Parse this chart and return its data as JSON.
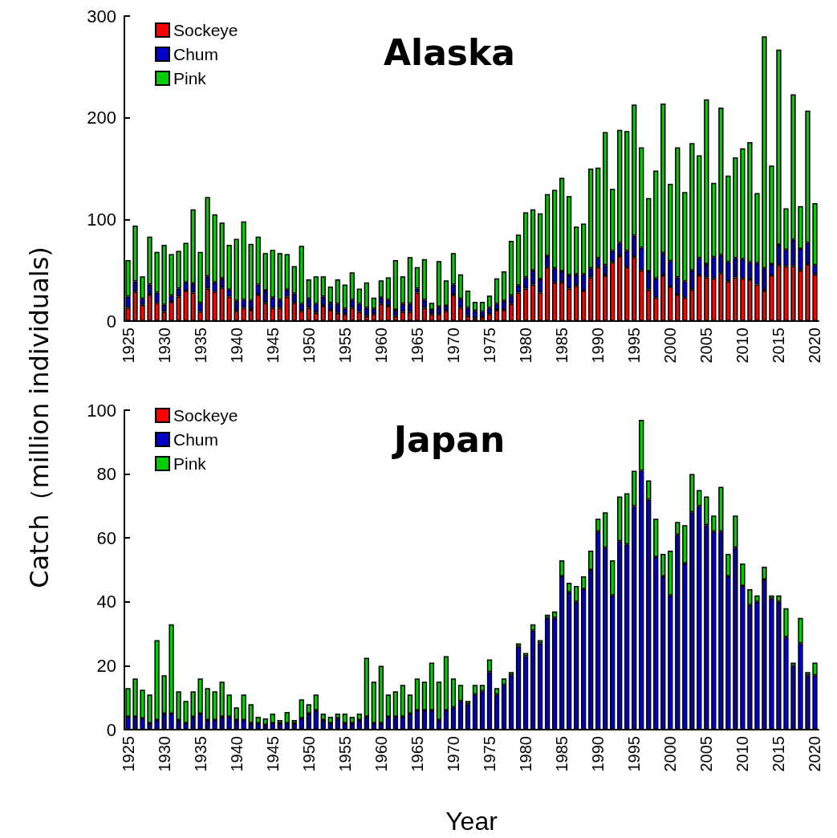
{
  "chart_data": [
    {
      "type": "bar",
      "title": "Alaska",
      "ylabel": "Catch（million individuals)",
      "stacked": true,
      "legend": "top left",
      "grid": false,
      "ylim": [
        0,
        300
      ],
      "yticks": [
        0,
        100,
        200,
        300
      ],
      "categories": [
        "1925",
        null,
        null,
        null,
        null,
        "1930",
        null,
        null,
        null,
        null,
        "1935",
        null,
        null,
        null,
        null,
        "1940",
        null,
        null,
        null,
        null,
        "1945",
        null,
        null,
        null,
        null,
        "1950",
        null,
        null,
        null,
        null,
        "1955",
        null,
        null,
        null,
        null,
        "1960",
        null,
        null,
        null,
        null,
        "1965",
        null,
        null,
        null,
        null,
        "1970",
        null,
        null,
        null,
        null,
        "1975",
        null,
        null,
        null,
        null,
        "1980",
        null,
        null,
        null,
        null,
        "1985",
        null,
        null,
        null,
        null,
        "1990",
        null,
        null,
        null,
        null,
        "1995",
        null,
        null,
        null,
        null,
        "2000",
        null,
        null,
        null,
        null,
        "2005",
        null,
        null,
        null,
        null,
        "2010",
        null,
        null,
        null,
        null,
        "2015",
        null,
        null,
        null,
        null,
        "2020"
      ],
      "series": [
        {
          "name": "Sockeye",
          "color": "#ff0000",
          "values": [
            13,
            29,
            16,
            26,
            18,
            9,
            19,
            24,
            30,
            28,
            9,
            32,
            29,
            33,
            24,
            10,
            13,
            11,
            26,
            18,
            13,
            13,
            24,
            18,
            10,
            13,
            8,
            15,
            11,
            8,
            7,
            13,
            9,
            5,
            7,
            17,
            15,
            5,
            9,
            9,
            28,
            13,
            7,
            7,
            10,
            26,
            13,
            5,
            3,
            4,
            7,
            11,
            11,
            17,
            28,
            32,
            36,
            28,
            53,
            38,
            38,
            32,
            35,
            30,
            43,
            53,
            45,
            58,
            64,
            53,
            63,
            50,
            31,
            23,
            45,
            34,
            26,
            23,
            31,
            45,
            43,
            42,
            47,
            39,
            43,
            42,
            41,
            36,
            30,
            45,
            55,
            54,
            54,
            50,
            56,
            46
          ]
        },
        {
          "name": "Chum",
          "color": "#0000cc",
          "values": [
            11,
            10,
            6,
            10,
            10,
            7,
            6,
            8,
            8,
            9,
            9,
            12,
            9,
            9,
            7,
            10,
            8,
            9,
            10,
            12,
            10,
            8,
            7,
            9,
            7,
            9,
            9,
            9,
            7,
            9,
            5,
            8,
            8,
            8,
            5,
            6,
            6,
            6,
            8,
            8,
            4,
            8,
            4,
            7,
            5,
            10,
            9,
            8,
            7,
            5,
            6,
            6,
            9,
            8,
            7,
            11,
            14,
            13,
            11,
            14,
            11,
            13,
            11,
            16,
            9,
            9,
            10,
            11,
            13,
            16,
            21,
            22,
            18,
            19,
            22,
            25,
            17,
            16,
            19,
            17,
            13,
            21,
            18,
            19,
            19,
            19,
            17,
            21,
            22,
            11,
            20,
            16,
            26,
            21,
            21,
            9
          ]
        },
        {
          "name": "Pink",
          "color": "#00cc00",
          "values": [
            36,
            55,
            22,
            47,
            40,
            59,
            41,
            37,
            39,
            73,
            50,
            78,
            67,
            55,
            44,
            61,
            77,
            56,
            47,
            37,
            47,
            46,
            35,
            27,
            57,
            19,
            27,
            20,
            16,
            24,
            24,
            27,
            15,
            25,
            11,
            17,
            22,
            49,
            27,
            46,
            21,
            40,
            7,
            45,
            25,
            31,
            24,
            17,
            9,
            10,
            12,
            25,
            29,
            54,
            50,
            64,
            60,
            65,
            61,
            77,
            92,
            78,
            47,
            50,
            98,
            89,
            131,
            61,
            111,
            118,
            129,
            99,
            72,
            106,
            147,
            76,
            128,
            88,
            125,
            101,
            162,
            73,
            145,
            85,
            99,
            109,
            118,
            69,
            228,
            97,
            192,
            41,
            143,
            42,
            130,
            61
          ]
        }
      ]
    },
    {
      "type": "bar",
      "title": "Japan",
      "xlabel": "Year",
      "stacked": true,
      "legend": "top left",
      "grid": false,
      "ylim": [
        0,
        100
      ],
      "yticks": [
        0,
        20,
        40,
        60,
        80,
        100
      ],
      "categories": [
        "1925",
        null,
        null,
        null,
        null,
        "1930",
        null,
        null,
        null,
        null,
        "1935",
        null,
        null,
        null,
        null,
        "1940",
        null,
        null,
        null,
        null,
        "1945",
        null,
        null,
        null,
        null,
        "1950",
        null,
        null,
        null,
        null,
        "1955",
        null,
        null,
        null,
        null,
        "1960",
        null,
        null,
        null,
        null,
        "1965",
        null,
        null,
        null,
        null,
        "1970",
        null,
        null,
        null,
        null,
        "1975",
        null,
        null,
        null,
        null,
        "1980",
        null,
        null,
        null,
        null,
        "1985",
        null,
        null,
        null,
        null,
        "1990",
        null,
        null,
        null,
        null,
        "1995",
        null,
        null,
        null,
        null,
        "2000",
        null,
        null,
        null,
        null,
        "2005",
        null,
        null,
        null,
        null,
        "2010",
        null,
        null,
        null,
        null,
        "2015",
        null,
        null,
        null,
        null,
        "2020"
      ],
      "series": [
        {
          "name": "Sockeye",
          "color": "#ff0000",
          "values": [
            0,
            0,
            0,
            0,
            0,
            0,
            0,
            0,
            0,
            0,
            0,
            0,
            0,
            0,
            0,
            0,
            0,
            0,
            0,
            0,
            0,
            0,
            0,
            0,
            0,
            0,
            0,
            0,
            0,
            0,
            0,
            0,
            0,
            0,
            0,
            0,
            0,
            0,
            0,
            0,
            0,
            0,
            0,
            0,
            0,
            0,
            0,
            0,
            0,
            0,
            0,
            0,
            0,
            0,
            0,
            0,
            0,
            0,
            0,
            0,
            0,
            0,
            0,
            0,
            0,
            0,
            0,
            0,
            0,
            0,
            0,
            0,
            0,
            0,
            0,
            0,
            0,
            0,
            0,
            0,
            0,
            0,
            0,
            0,
            0,
            0,
            0,
            0,
            0,
            0,
            0,
            0,
            0,
            0,
            0,
            0
          ]
        },
        {
          "name": "Chum",
          "color": "#0000cc",
          "values": [
            4,
            4,
            3.5,
            2,
            3,
            5,
            5,
            3,
            2,
            4,
            5,
            3,
            3,
            4,
            4,
            3,
            3,
            2,
            2,
            1.5,
            2,
            2,
            2,
            2,
            3.5,
            5,
            6,
            3,
            2,
            3.5,
            2,
            2,
            3,
            4,
            2,
            2,
            4,
            4,
            4,
            5,
            6,
            6,
            6,
            3,
            6,
            7,
            9,
            8,
            11,
            12,
            18,
            11,
            14,
            17,
            26,
            23,
            31,
            27,
            35,
            35,
            48,
            43,
            40,
            44,
            50,
            62,
            57,
            42,
            59,
            58,
            70,
            81,
            72,
            54,
            48,
            42,
            61,
            52,
            68,
            70,
            64,
            62,
            62,
            48,
            57,
            45,
            39,
            40,
            47,
            41,
            40,
            29,
            20,
            27,
            17,
            17
          ]
        },
        {
          "name": "Pink",
          "color": "#00cc00",
          "values": [
            9,
            12,
            9,
            9,
            25,
            12,
            28,
            9,
            7,
            8,
            11,
            10,
            9,
            11,
            7,
            4,
            8,
            6,
            2,
            2,
            3,
            1,
            3.5,
            1,
            6,
            3,
            5,
            2,
            2,
            1.5,
            3,
            2,
            2,
            18.5,
            13,
            18,
            7,
            8,
            10,
            6,
            10,
            9,
            15,
            12,
            17,
            9,
            5,
            1,
            3,
            2,
            4,
            2,
            2,
            1,
            1,
            1,
            2,
            1,
            1,
            2,
            5,
            3,
            5,
            4,
            6,
            4,
            11,
            11,
            14,
            16,
            11,
            16,
            6,
            12,
            7,
            14,
            4,
            12,
            12,
            5,
            9,
            5,
            14,
            7,
            10,
            7,
            5,
            2,
            4,
            1,
            2,
            9,
            1,
            8,
            1,
            4
          ]
        }
      ]
    }
  ]
}
